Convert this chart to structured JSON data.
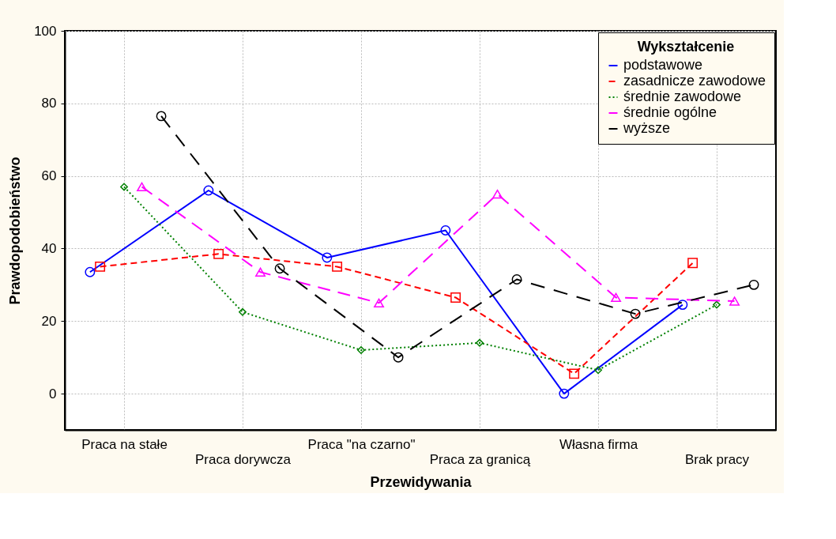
{
  "chart_data": {
    "type": "line",
    "xlabel": "Przewidywania",
    "ylabel": "Prawdopodobieństwo",
    "legend_title": "Wykształcenie",
    "categories": [
      "Praca na stałe",
      "Praca dorywcza",
      "Praca \"na czarno\"",
      "Praca za granicą",
      "Własna firma",
      "Brak pracy"
    ],
    "series": [
      {
        "name": "podstawowe",
        "color": "#0000ff",
        "marker": "circle",
        "line_style": "solid",
        "values": [
          33.5,
          56,
          37.5,
          45,
          0,
          24.5
        ]
      },
      {
        "name": "zasadnicze zawodowe",
        "color": "#ff0000",
        "marker": "square",
        "line_style": "dashed",
        "values": [
          35,
          38.5,
          35,
          26.5,
          5.5,
          36
        ]
      },
      {
        "name": "średnie zawodowe",
        "color": "#008000",
        "marker": "diamond",
        "line_style": "dotted",
        "values": [
          57,
          22.5,
          12,
          14,
          6.5,
          24.5
        ]
      },
      {
        "name": "średnie ogólne",
        "color": "#ff00ff",
        "marker": "triangle",
        "line_style": "dashed",
        "values": [
          57,
          33.5,
          25,
          55,
          26.5,
          25.5
        ]
      },
      {
        "name": "wyższe",
        "color": "#000000",
        "marker": "circle",
        "line_style": "dashed",
        "values": [
          76.5,
          34.5,
          10,
          31.5,
          22,
          30
        ]
      }
    ],
    "ylim": [
      -10,
      100
    ],
    "yticks": [
      0,
      20,
      40,
      60,
      80,
      100
    ],
    "grid": true,
    "legend": "top right"
  }
}
